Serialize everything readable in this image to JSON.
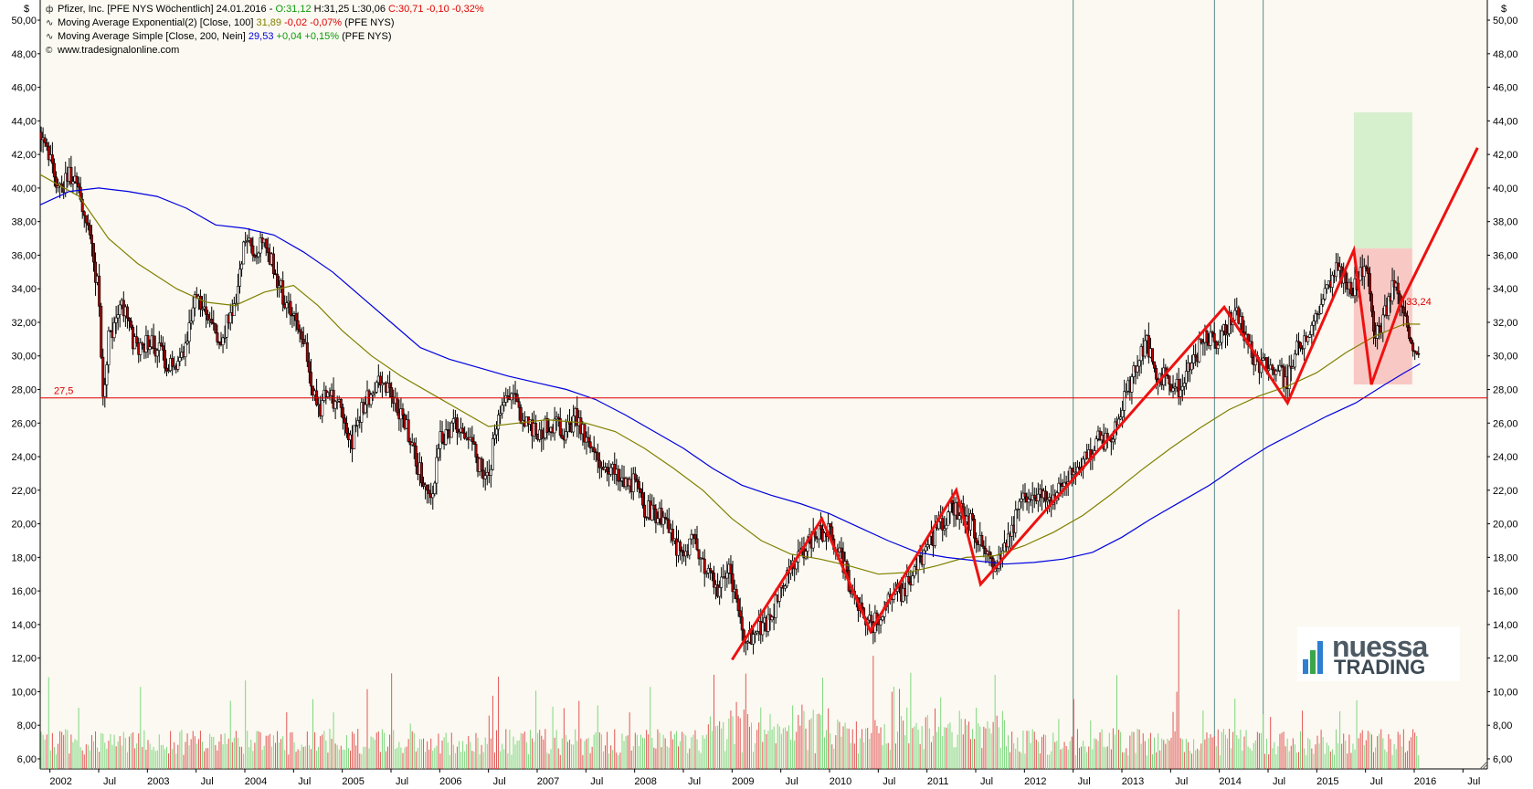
{
  "chart_data": {
    "type": "candlestick",
    "currency_symbol": "$",
    "legend": {
      "line1": {
        "name": "Pfizer, Inc. [PFE NYS  Wöchentlich] 24.01.2016 - ",
        "o": "O:31,12",
        "h": "H:31,25",
        "l": "L:30,06",
        "c": "C:30,71",
        "chg": "-0,10",
        "chg_pct": "-0,32%"
      },
      "line2": {
        "name": "Moving Average Exponential(2) [Close, 100]",
        "value": "31,89",
        "chg": "-0,02",
        "chg_pct": "-0,07%",
        "suffix": "(PFE NYS)"
      },
      "line3": {
        "name": "Moving Average Simple [Close, 200, Nein]",
        "value": "29,53",
        "chg": "+0,04",
        "chg_pct": "+0,15%",
        "suffix": "(PFE NYS)"
      },
      "line4": {
        "name": "www.tradesignalonline.com"
      }
    },
    "y_ticks": [
      "6,00",
      "8,00",
      "10,00",
      "12,00",
      "14,00",
      "16,00",
      "18,00",
      "20,00",
      "22,00",
      "24,00",
      "26,00",
      "28,00",
      "30,00",
      "32,00",
      "34,00",
      "36,00",
      "38,00",
      "40,00",
      "42,00",
      "44,00",
      "46,00",
      "48,00",
      "50,00"
    ],
    "ylim": [
      5.4,
      51.2
    ],
    "x_range": [
      2001.9,
      2016.75
    ],
    "x_ticks": [
      {
        "label": "2002",
        "t": 2002.0
      },
      {
        "label": "Jul",
        "t": 2002.5
      },
      {
        "label": "2003",
        "t": 2003.0
      },
      {
        "label": "Jul",
        "t": 2003.5
      },
      {
        "label": "2004",
        "t": 2004.0
      },
      {
        "label": "Jul",
        "t": 2004.5
      },
      {
        "label": "2005",
        "t": 2005.0
      },
      {
        "label": "Jul",
        "t": 2005.5
      },
      {
        "label": "2006",
        "t": 2006.0
      },
      {
        "label": "Jul",
        "t": 2006.5
      },
      {
        "label": "2007",
        "t": 2007.0
      },
      {
        "label": "Jul",
        "t": 2007.5
      },
      {
        "label": "2008",
        "t": 2008.0
      },
      {
        "label": "Jul",
        "t": 2008.5
      },
      {
        "label": "2009",
        "t": 2009.0
      },
      {
        "label": "Jul",
        "t": 2009.5
      },
      {
        "label": "2010",
        "t": 2010.0
      },
      {
        "label": "Jul",
        "t": 2010.5
      },
      {
        "label": "2011",
        "t": 2011.0
      },
      {
        "label": "Jul",
        "t": 2011.5
      },
      {
        "label": "2012",
        "t": 2012.0
      },
      {
        "label": "Jul",
        "t": 2012.5
      },
      {
        "label": "2013",
        "t": 2013.0
      },
      {
        "label": "Jul",
        "t": 2013.5
      },
      {
        "label": "2014",
        "t": 2014.0
      },
      {
        "label": "Jul",
        "t": 2014.5
      },
      {
        "label": "2015",
        "t": 2015.0
      },
      {
        "label": "Jul",
        "t": 2015.5
      },
      {
        "label": "2016",
        "t": 2016.0
      },
      {
        "label": "Jul",
        "t": 2016.5
      }
    ],
    "price_path": [
      [
        2001.9,
        43.5
      ],
      [
        2002.1,
        40.0
      ],
      [
        2002.25,
        41.0
      ],
      [
        2002.4,
        37.0
      ],
      [
        2002.5,
        34.0
      ],
      [
        2002.55,
        27.0
      ],
      [
        2002.6,
        31.0
      ],
      [
        2002.75,
        33.0
      ],
      [
        2002.9,
        30.0
      ],
      [
        2003.0,
        31.0
      ],
      [
        2003.15,
        30.0
      ],
      [
        2003.3,
        29.0
      ],
      [
        2003.4,
        31.0
      ],
      [
        2003.5,
        34.0
      ],
      [
        2003.6,
        32.0
      ],
      [
        2003.75,
        31.0
      ],
      [
        2003.9,
        33.0
      ],
      [
        2004.0,
        37.5
      ],
      [
        2004.1,
        36.0
      ],
      [
        2004.2,
        37.0
      ],
      [
        2004.3,
        35.0
      ],
      [
        2004.4,
        33.5
      ],
      [
        2004.5,
        32.0
      ],
      [
        2004.6,
        31.0
      ],
      [
        2004.75,
        26.5
      ],
      [
        2004.85,
        28.0
      ],
      [
        2005.0,
        26.5
      ],
      [
        2005.1,
        25.0
      ],
      [
        2005.25,
        27.5
      ],
      [
        2005.4,
        28.5
      ],
      [
        2005.5,
        27.5
      ],
      [
        2005.6,
        26.5
      ],
      [
        2005.7,
        25.0
      ],
      [
        2005.8,
        23.0
      ],
      [
        2005.9,
        21.0
      ],
      [
        2006.0,
        25.0
      ],
      [
        2006.15,
        26.0
      ],
      [
        2006.25,
        25.5
      ],
      [
        2006.4,
        23.5
      ],
      [
        2006.5,
        22.5
      ],
      [
        2006.6,
        27.0
      ],
      [
        2006.75,
        28.0
      ],
      [
        2006.85,
        26.0
      ],
      [
        2007.0,
        25.5
      ],
      [
        2007.15,
        26.0
      ],
      [
        2007.3,
        25.5
      ],
      [
        2007.4,
        26.5
      ],
      [
        2007.5,
        25.0
      ],
      [
        2007.6,
        24.0
      ],
      [
        2007.75,
        23.5
      ],
      [
        2007.85,
        22.5
      ],
      [
        2008.0,
        22.5
      ],
      [
        2008.1,
        21.0
      ],
      [
        2008.25,
        20.5
      ],
      [
        2008.4,
        19.0
      ],
      [
        2008.5,
        18.0
      ],
      [
        2008.6,
        19.5
      ],
      [
        2008.75,
        17.0
      ],
      [
        2008.85,
        16.0
      ],
      [
        2008.95,
        17.5
      ],
      [
        2009.05,
        15.0
      ],
      [
        2009.15,
        13.0
      ],
      [
        2009.25,
        13.5
      ],
      [
        2009.4,
        14.5
      ],
      [
        2009.5,
        16.0
      ],
      [
        2009.6,
        17.0
      ],
      [
        2009.75,
        18.5
      ],
      [
        2009.85,
        19.5
      ],
      [
        2010.0,
        19.5
      ],
      [
        2010.1,
        18.5
      ],
      [
        2010.2,
        16.5
      ],
      [
        2010.3,
        15.0
      ],
      [
        2010.45,
        14.0
      ],
      [
        2010.6,
        15.5
      ],
      [
        2010.75,
        16.0
      ],
      [
        2010.9,
        17.5
      ],
      [
        2011.0,
        18.5
      ],
      [
        2011.1,
        19.5
      ],
      [
        2011.25,
        21.0
      ],
      [
        2011.4,
        20.5
      ],
      [
        2011.5,
        19.5
      ],
      [
        2011.6,
        18.0
      ],
      [
        2011.7,
        17.5
      ],
      [
        2011.85,
        19.5
      ],
      [
        2012.0,
        21.5
      ],
      [
        2012.1,
        22.0
      ],
      [
        2012.25,
        21.5
      ],
      [
        2012.4,
        22.5
      ],
      [
        2012.5,
        23.0
      ],
      [
        2012.6,
        24.0
      ],
      [
        2012.75,
        25.0
      ],
      [
        2012.9,
        25.0
      ],
      [
        2013.0,
        27.0
      ],
      [
        2013.1,
        28.5
      ],
      [
        2013.25,
        31.0
      ],
      [
        2013.35,
        29.0
      ],
      [
        2013.5,
        28.5
      ],
      [
        2013.6,
        28.0
      ],
      [
        2013.75,
        30.0
      ],
      [
        2013.85,
        31.0
      ],
      [
        2014.0,
        31.0
      ],
      [
        2014.1,
        32.0
      ],
      [
        2014.2,
        32.5
      ],
      [
        2014.3,
        30.5
      ],
      [
        2014.4,
        29.5
      ],
      [
        2014.5,
        29.5
      ],
      [
        2014.6,
        29.0
      ],
      [
        2014.7,
        28.5
      ],
      [
        2014.8,
        30.5
      ],
      [
        2014.9,
        31.5
      ],
      [
        2015.0,
        32.5
      ],
      [
        2015.1,
        34.0
      ],
      [
        2015.2,
        35.0
      ],
      [
        2015.3,
        34.5
      ],
      [
        2015.4,
        34.0
      ],
      [
        2015.45,
        35.5
      ],
      [
        2015.55,
        34.0
      ],
      [
        2015.6,
        31.0
      ],
      [
        2015.7,
        32.5
      ],
      [
        2015.8,
        34.5
      ],
      [
        2015.85,
        33.0
      ],
      [
        2015.95,
        31.5
      ],
      [
        2016.0,
        30.5
      ],
      [
        2016.06,
        30.7
      ]
    ],
    "series": [
      {
        "name": "Moving Average Exponential(2) [Close, 100]",
        "color": "#808000",
        "points": [
          [
            2001.9,
            40.8
          ],
          [
            2002.3,
            39.5
          ],
          [
            2002.6,
            37.0
          ],
          [
            2002.9,
            35.5
          ],
          [
            2003.3,
            34.0
          ],
          [
            2003.6,
            33.2
          ],
          [
            2003.9,
            33.0
          ],
          [
            2004.2,
            33.8
          ],
          [
            2004.5,
            34.2
          ],
          [
            2004.75,
            33.0
          ],
          [
            2005.0,
            31.5
          ],
          [
            2005.3,
            30.0
          ],
          [
            2005.6,
            28.8
          ],
          [
            2005.9,
            27.8
          ],
          [
            2006.2,
            26.8
          ],
          [
            2006.5,
            25.8
          ],
          [
            2006.8,
            26.0
          ],
          [
            2007.1,
            26.2
          ],
          [
            2007.5,
            26.0
          ],
          [
            2007.8,
            25.5
          ],
          [
            2008.1,
            24.5
          ],
          [
            2008.4,
            23.3
          ],
          [
            2008.7,
            22.0
          ],
          [
            2009.0,
            20.3
          ],
          [
            2009.3,
            19.0
          ],
          [
            2009.6,
            18.2
          ],
          [
            2009.9,
            17.9
          ],
          [
            2010.2,
            17.5
          ],
          [
            2010.5,
            17.0
          ],
          [
            2010.8,
            17.1
          ],
          [
            2011.1,
            17.5
          ],
          [
            2011.4,
            18.0
          ],
          [
            2011.7,
            18.1
          ],
          [
            2012.0,
            18.7
          ],
          [
            2012.3,
            19.5
          ],
          [
            2012.6,
            20.5
          ],
          [
            2012.9,
            21.8
          ],
          [
            2013.2,
            23.2
          ],
          [
            2013.5,
            24.5
          ],
          [
            2013.8,
            25.7
          ],
          [
            2014.1,
            26.8
          ],
          [
            2014.4,
            27.6
          ],
          [
            2014.7,
            28.2
          ],
          [
            2015.0,
            29.0
          ],
          [
            2015.3,
            30.2
          ],
          [
            2015.6,
            31.2
          ],
          [
            2015.9,
            31.9
          ],
          [
            2016.06,
            31.89
          ]
        ]
      },
      {
        "name": "Moving Average Simple [Close, 200, Nein]",
        "color": "#0000e0",
        "points": [
          [
            2001.9,
            39.0
          ],
          [
            2002.2,
            39.8
          ],
          [
            2002.5,
            40.0
          ],
          [
            2002.8,
            39.8
          ],
          [
            2003.1,
            39.5
          ],
          [
            2003.4,
            38.8
          ],
          [
            2003.7,
            37.8
          ],
          [
            2004.0,
            37.6
          ],
          [
            2004.3,
            37.2
          ],
          [
            2004.6,
            36.2
          ],
          [
            2004.9,
            35.0
          ],
          [
            2005.2,
            33.5
          ],
          [
            2005.5,
            32.0
          ],
          [
            2005.8,
            30.5
          ],
          [
            2006.1,
            29.8
          ],
          [
            2006.4,
            29.3
          ],
          [
            2006.7,
            28.8
          ],
          [
            2007.0,
            28.4
          ],
          [
            2007.3,
            28.0
          ],
          [
            2007.6,
            27.4
          ],
          [
            2007.9,
            26.5
          ],
          [
            2008.2,
            25.5
          ],
          [
            2008.5,
            24.5
          ],
          [
            2008.8,
            23.3
          ],
          [
            2009.1,
            22.3
          ],
          [
            2009.4,
            21.7
          ],
          [
            2009.7,
            21.2
          ],
          [
            2010.0,
            20.6
          ],
          [
            2010.3,
            19.8
          ],
          [
            2010.6,
            19.0
          ],
          [
            2010.9,
            18.3
          ],
          [
            2011.2,
            18.0
          ],
          [
            2011.5,
            17.8
          ],
          [
            2011.8,
            17.6
          ],
          [
            2012.1,
            17.7
          ],
          [
            2012.4,
            17.9
          ],
          [
            2012.7,
            18.3
          ],
          [
            2013.0,
            19.2
          ],
          [
            2013.3,
            20.3
          ],
          [
            2013.6,
            21.3
          ],
          [
            2013.9,
            22.3
          ],
          [
            2014.2,
            23.5
          ],
          [
            2014.5,
            24.6
          ],
          [
            2014.8,
            25.5
          ],
          [
            2015.1,
            26.4
          ],
          [
            2015.4,
            27.2
          ],
          [
            2015.7,
            28.3
          ],
          [
            2015.9,
            29.0
          ],
          [
            2016.06,
            29.53
          ]
        ]
      }
    ],
    "support_line": {
      "value": 27.5,
      "label": "27,5",
      "color": "#e00000"
    },
    "vertical_lines": [
      2012.5,
      2013.95,
      2014.45
    ],
    "zigzag": [
      [
        2009.0,
        11.9
      ],
      [
        2009.92,
        20.3
      ],
      [
        2010.42,
        13.6
      ],
      [
        2011.3,
        22.0
      ],
      [
        2011.55,
        16.4
      ],
      [
        2014.05,
        32.9
      ],
      [
        2014.7,
        27.2
      ],
      [
        2015.38,
        36.3
      ],
      [
        2015.56,
        28.3
      ],
      [
        2015.85,
        33.0
      ],
      [
        2016.65,
        42.4
      ]
    ],
    "target_box": {
      "x0": 2015.38,
      "x1": 2015.98,
      "green_top": 44.5,
      "mid": 36.4,
      "red_bottom": 28.3
    },
    "annotation_label": {
      "t": 2015.88,
      "v": 33.24,
      "text": "33,24"
    },
    "volume_bars_note": "weekly volume bars, green = up week, red = down week",
    "volume_ylim": [
      5.4,
      51.2
    ]
  },
  "logo": {
    "word1": "nuessa",
    "word2": "TRADING"
  }
}
